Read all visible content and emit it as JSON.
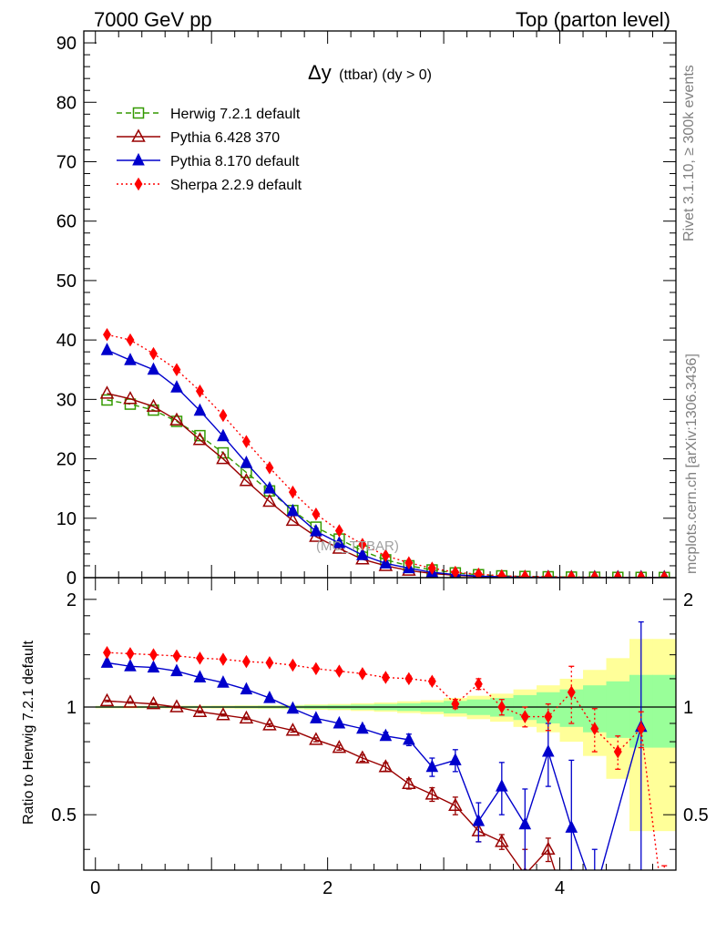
{
  "header": {
    "left": "7000 GeV pp",
    "right": "Top (parton level)"
  },
  "side_labels": {
    "rivet": "Rivet 3.1.10, ≥ 300k events",
    "mcplots": "mcplots.cern.ch [arXiv:1306.3436]"
  },
  "colors": {
    "herwig": "#339900",
    "pythia6": "#990000",
    "pythia8": "#0000cc",
    "sherpa": "#ff0000",
    "band_outer": "#ffff99",
    "band_inner": "#99ff99"
  },
  "chart_data": [
    {
      "type": "line",
      "title": "Δy (ttbar) (dy > 0)",
      "title_main": "Δy",
      "title_sub": "(ttbar) (dy > 0)",
      "watermark": "(MC_TTBAR)",
      "xlabel": "",
      "ylabel": "",
      "xlim": [
        -0.1,
        5.0
      ],
      "ylim": [
        0,
        92
      ],
      "yticks": [
        0,
        10,
        20,
        30,
        40,
        50,
        60,
        70,
        80,
        90
      ],
      "ytick_labels": [
        "0",
        "10",
        "20",
        "30",
        "40",
        "50",
        "60",
        "70",
        "80",
        "90"
      ],
      "legend_position": "top-left",
      "x": [
        0.1,
        0.3,
        0.5,
        0.7,
        0.9,
        1.1,
        1.3,
        1.5,
        1.7,
        1.9,
        2.1,
        2.3,
        2.5,
        2.7,
        2.9,
        3.1,
        3.3,
        3.5,
        3.7,
        3.9,
        4.1,
        4.3,
        4.5,
        4.7,
        4.9
      ],
      "series": [
        {
          "name": "Herwig 7.2.1 default",
          "marker": "open-square",
          "dash": "dashed",
          "values": [
            29.9,
            29.2,
            28.2,
            26.3,
            23.9,
            21.0,
            17.7,
            14.6,
            11.3,
            8.5,
            6.5,
            4.5,
            3.0,
            2.0,
            1.3,
            0.8,
            0.5,
            0.3,
            0.2,
            0.15,
            0.1,
            0.07,
            0.05,
            0.04,
            0.03
          ]
        },
        {
          "name": "Pythia 6.428 370",
          "marker": "open-triangle",
          "dash": "solid",
          "values": [
            31.0,
            30.1,
            28.8,
            26.5,
            23.2,
            20.0,
            16.3,
            12.8,
            9.6,
            6.9,
            4.9,
            3.1,
            2.0,
            1.2,
            0.7,
            0.4,
            0.2,
            0.1,
            0.05,
            0.05,
            0.02,
            0.01,
            0.01,
            0.0,
            0.0
          ]
        },
        {
          "name": "Pythia 8.170 default",
          "marker": "filled-triangle",
          "dash": "solid",
          "values": [
            38.3,
            36.6,
            35.0,
            32.0,
            28.1,
            23.8,
            19.3,
            15.0,
            11.2,
            7.8,
            5.8,
            3.8,
            2.4,
            1.6,
            0.9,
            0.5,
            0.25,
            0.15,
            0.08,
            0.08,
            0.03,
            0.02,
            0.01,
            0.02,
            0.0
          ]
        },
        {
          "name": "Sherpa 2.2.9 default",
          "marker": "filled-diamond",
          "dash": "dotted",
          "values": [
            40.9,
            40.0,
            37.7,
            35.0,
            31.4,
            27.3,
            22.9,
            18.5,
            14.4,
            10.7,
            7.9,
            5.6,
            3.7,
            2.5,
            1.6,
            0.9,
            0.6,
            0.3,
            0.2,
            0.15,
            0.11,
            0.06,
            0.04,
            0.04,
            0.01
          ]
        }
      ]
    },
    {
      "type": "line",
      "title": "",
      "xlabel": "",
      "ylabel": "Ratio to Herwig 7.2.1 default",
      "xlim": [
        -0.1,
        5.0
      ],
      "ylim": [
        0.35,
        2.3
      ],
      "yscale": "log",
      "xticks": [
        0,
        2,
        4
      ],
      "xtick_labels": [
        "0",
        "2",
        "4"
      ],
      "yticks": [
        0.5,
        1,
        2
      ],
      "ytick_labels": [
        "0.5",
        "1",
        "2"
      ],
      "reference_line": 1,
      "x": [
        0.1,
        0.3,
        0.5,
        0.7,
        0.9,
        1.1,
        1.3,
        1.5,
        1.7,
        1.9,
        2.1,
        2.3,
        2.5,
        2.7,
        2.9,
        3.1,
        3.3,
        3.5,
        3.7,
        3.9,
        4.1,
        4.3,
        4.5,
        4.7,
        4.9
      ],
      "band_inner": [
        0.005,
        0.005,
        0.005,
        0.005,
        0.006,
        0.006,
        0.007,
        0.008,
        0.009,
        0.011,
        0.013,
        0.016,
        0.02,
        0.025,
        0.03,
        0.04,
        0.05,
        0.06,
        0.08,
        0.1,
        0.12,
        0.15,
        0.18,
        0.23,
        0.23
      ],
      "band_outer": [
        0.008,
        0.008,
        0.008,
        0.009,
        0.009,
        0.01,
        0.011,
        0.012,
        0.014,
        0.017,
        0.02,
        0.025,
        0.03,
        0.038,
        0.045,
        0.06,
        0.075,
        0.09,
        0.12,
        0.15,
        0.2,
        0.27,
        0.37,
        0.55,
        0.55
      ],
      "series": [
        {
          "name": "Pythia 6.428 370",
          "marker": "open-triangle",
          "dash": "solid",
          "values": [
            1.04,
            1.03,
            1.02,
            1.0,
            0.97,
            0.95,
            0.93,
            0.89,
            0.86,
            0.81,
            0.77,
            0.72,
            0.68,
            0.61,
            0.57,
            0.53,
            0.45,
            0.42,
            0.34,
            0.4,
            0.25,
            null,
            null,
            null,
            null
          ],
          "errors": [
            0.005,
            0.005,
            0.005,
            0.005,
            0.006,
            0.006,
            0.007,
            0.008,
            0.009,
            0.01,
            0.012,
            0.015,
            0.018,
            0.02,
            0.025,
            0.03,
            0.03,
            0.02,
            0.06,
            0.03,
            0.1,
            null,
            null,
            null,
            null
          ]
        },
        {
          "name": "Pythia 8.170 default",
          "marker": "filled-triangle",
          "dash": "solid",
          "values": [
            1.33,
            1.3,
            1.29,
            1.26,
            1.21,
            1.17,
            1.12,
            1.06,
            0.99,
            0.93,
            0.9,
            0.87,
            0.83,
            0.81,
            0.68,
            0.71,
            0.48,
            0.6,
            0.47,
            0.75,
            0.46,
            0.3,
            null,
            0.88,
            null
          ],
          "errors": [
            0.005,
            0.005,
            0.005,
            0.005,
            0.006,
            0.006,
            0.007,
            0.008,
            0.009,
            0.01,
            0.012,
            0.015,
            0.02,
            0.03,
            0.04,
            0.05,
            0.06,
            0.1,
            0.12,
            0.15,
            0.25,
            0.1,
            null,
            0.85,
            null
          ]
        },
        {
          "name": "Sherpa 2.2.9 default",
          "marker": "filled-diamond",
          "dash": "dotted",
          "values": [
            1.42,
            1.41,
            1.4,
            1.39,
            1.37,
            1.36,
            1.34,
            1.33,
            1.31,
            1.28,
            1.26,
            1.24,
            1.21,
            1.2,
            1.18,
            1.02,
            1.16,
            1.0,
            0.94,
            0.94,
            1.1,
            0.87,
            0.75,
            0.87,
            0.26
          ],
          "errors": [
            0.005,
            0.005,
            0.005,
            0.005,
            0.006,
            0.006,
            0.007,
            0.008,
            0.009,
            0.011,
            0.013,
            0.016,
            0.02,
            0.02,
            0.02,
            0.03,
            0.04,
            0.05,
            0.06,
            0.08,
            0.2,
            0.12,
            0.08,
            0.1,
            0.1
          ]
        }
      ]
    }
  ]
}
